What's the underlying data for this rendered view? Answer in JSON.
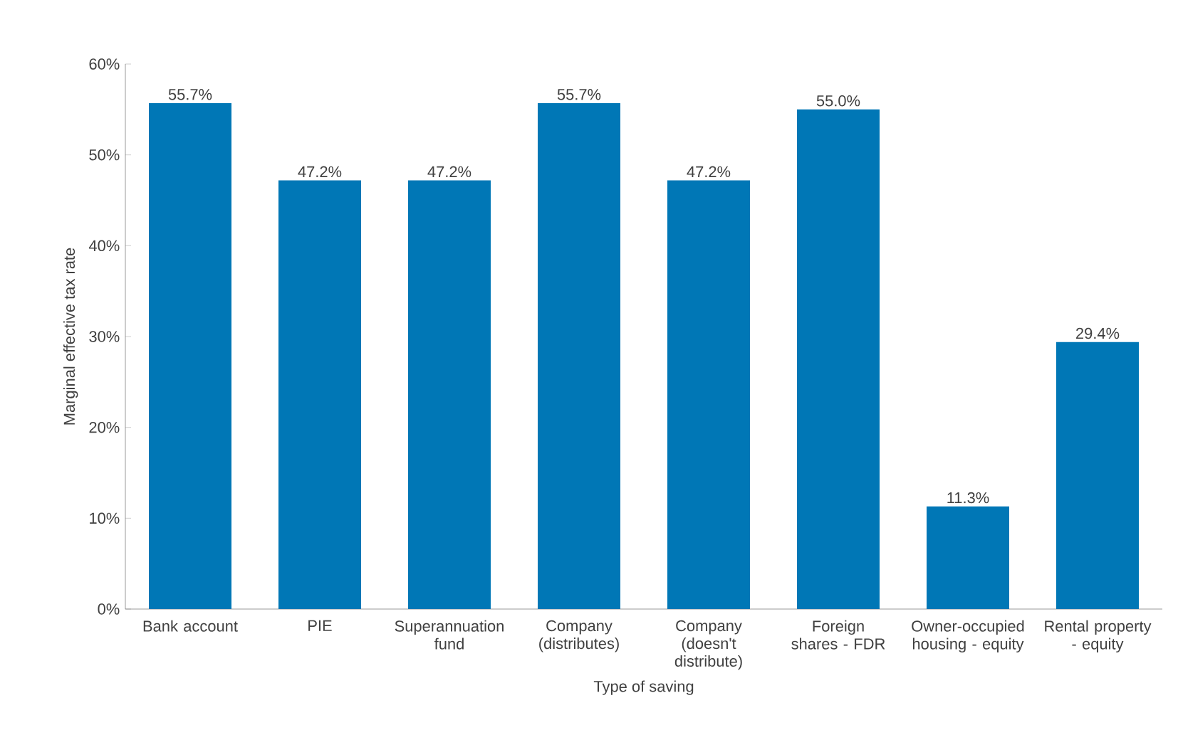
{
  "chart_data": {
    "type": "bar",
    "xlabel": "Type of saving",
    "ylabel": "Marginal effective tax rate",
    "categories": [
      "Bank account",
      "PIE",
      "Superannuation fund",
      "Company (distributes)",
      "Company (doesn't distribute)",
      "Foreign shares - FDR",
      "Owner-occupied housing - equity",
      "Rental property - equity"
    ],
    "values": [
      55.7,
      47.2,
      47.2,
      55.7,
      47.2,
      55.0,
      11.3,
      29.4
    ],
    "value_labels": [
      "55.7%",
      "47.2%",
      "47.2%",
      "55.7%",
      "47.2%",
      "55.0%",
      "11.3%",
      "29.4%"
    ],
    "color": "#0077b6",
    "ylim": [
      0,
      60
    ],
    "yticks": [
      {
        "value": 0,
        "label": "0%"
      },
      {
        "value": 10,
        "label": "10%"
      },
      {
        "value": 20,
        "label": "20%"
      },
      {
        "value": 30,
        "label": "30%"
      },
      {
        "value": 40,
        "label": "40%"
      },
      {
        "value": 50,
        "label": "50%"
      },
      {
        "value": 60,
        "label": "60%"
      }
    ],
    "grid": false
  }
}
